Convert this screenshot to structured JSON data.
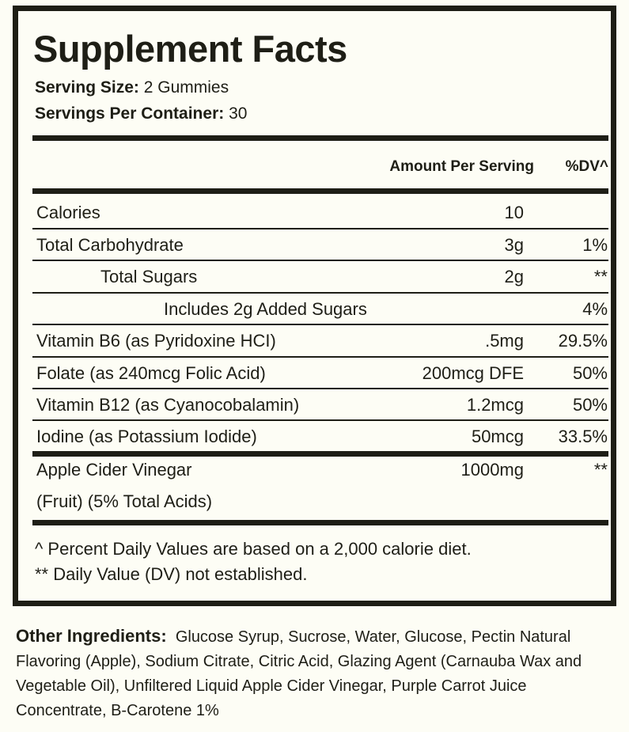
{
  "title": "Supplement Facts",
  "serving_size": {
    "label": "Serving Size:",
    "value": "2 Gummies"
  },
  "servings_per_container": {
    "label": "Servings Per Container:",
    "value": "30"
  },
  "header": {
    "amount": "Amount Per Serving",
    "dv": "%DV^"
  },
  "rows": [
    {
      "name": "Calories",
      "amount": "10",
      "dv": ""
    },
    {
      "name": "Total Carbohydrate",
      "amount": "3g",
      "dv": "1%"
    },
    {
      "name": "Total Sugars",
      "amount": "2g",
      "dv": "**"
    },
    {
      "name": "Includes 2g Added Sugars",
      "amount": "",
      "dv": "4%"
    },
    {
      "name": "Vitamin B6 (as Pyridoxine HCI)",
      "amount": ".5mg",
      "dv": "29.5%"
    },
    {
      "name": "Folate (as 240mcg Folic Acid)",
      "amount": "200mcg DFE",
      "dv": "50%"
    },
    {
      "name": "Vitamin B12 (as Cyanocobalamin)",
      "amount": "1.2mcg",
      "dv": "50%"
    },
    {
      "name": "Iodine (as Potassium Iodide)",
      "amount": "50mcg",
      "dv": "33.5%"
    }
  ],
  "acv": {
    "name_line1": "Apple Cider Vinegar",
    "name_line2": "(Fruit) (5% Total Acids)",
    "amount": "1000mg",
    "dv": "**"
  },
  "footnotes": [
    "^ Percent Daily Values are based on a 2,000 calorie diet.",
    "** Daily Value (DV) not established."
  ],
  "other_ingredients": {
    "label": "Other Ingredients:",
    "text": "Glucose Syrup, Sucrose, Water, Glucose, Pectin Natural Flavoring (Apple), Sodium Citrate, Citric Acid, Glazing Agent (Carnauba Wax and Vegetable Oil), Unfiltered Liquid Apple Cider Vinegar, Purple Carrot Juice Concentrate, B-Carotene 1%"
  }
}
